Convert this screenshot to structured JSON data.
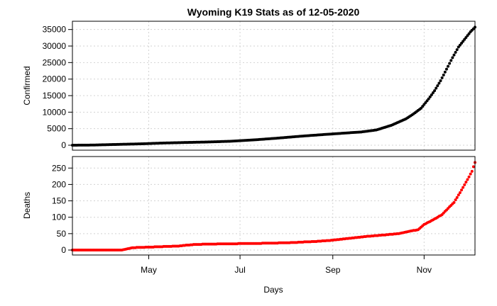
{
  "chart_data": {
    "type": "scatter",
    "title": "Wyoming K19 Stats as of 12-05-2020",
    "xlabel": "Days",
    "x_tick_labels": [
      "May",
      "Jul",
      "Sep",
      "Nov"
    ],
    "grid": true,
    "panels": [
      {
        "name": "confirmed",
        "ylabel": "Confirmed",
        "ylim": [
          0,
          36000
        ],
        "y_ticks": [
          0,
          5000,
          10000,
          15000,
          20000,
          25000,
          30000,
          35000
        ],
        "color": "#000000",
        "x": [
          "2020-03-11",
          "2020-03-25",
          "2020-04-10",
          "2020-04-25",
          "2020-05-10",
          "2020-05-25",
          "2020-06-10",
          "2020-06-25",
          "2020-07-10",
          "2020-07-25",
          "2020-08-10",
          "2020-08-25",
          "2020-09-10",
          "2020-09-20",
          "2020-09-30",
          "2020-10-10",
          "2020-10-20",
          "2020-10-25",
          "2020-10-30",
          "2020-11-04",
          "2020-11-08",
          "2020-11-12",
          "2020-11-16",
          "2020-11-20",
          "2020-11-24",
          "2020-11-28",
          "2020-12-02",
          "2020-12-05"
        ],
        "y": [
          1,
          50,
          240,
          400,
          650,
          820,
          980,
          1200,
          1600,
          2100,
          2700,
          3200,
          3700,
          4000,
          4600,
          6000,
          8000,
          9500,
          11200,
          14000,
          16500,
          19500,
          23000,
          26500,
          29700,
          32000,
          34300,
          35700
        ]
      },
      {
        "name": "deaths",
        "ylabel": "Deaths",
        "ylim": [
          0,
          270
        ],
        "y_ticks": [
          0,
          50,
          100,
          150,
          200,
          250
        ],
        "color": "#ff0000",
        "x": [
          "2020-03-11",
          "2020-04-13",
          "2020-04-20",
          "2020-05-20",
          "2020-06-01",
          "2020-06-20",
          "2020-07-10",
          "2020-08-01",
          "2020-08-20",
          "2020-09-01",
          "2020-09-10",
          "2020-09-25",
          "2020-10-15",
          "2020-10-22",
          "2020-10-28",
          "2020-11-01",
          "2020-11-05",
          "2020-11-09",
          "2020-11-13",
          "2020-11-17",
          "2020-11-21",
          "2020-11-25",
          "2020-11-30",
          "2020-12-03",
          "2020-12-05"
        ],
        "y": [
          0,
          0,
          7,
          12,
          17,
          19,
          20,
          22,
          26,
          30,
          35,
          42,
          50,
          57,
          62,
          78,
          87,
          97,
          108,
          127,
          145,
          175,
          215,
          240,
          267
        ]
      }
    ]
  }
}
